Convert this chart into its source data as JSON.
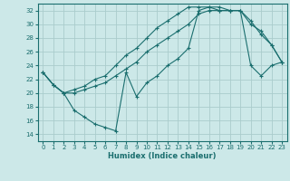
{
  "xlabel": "Humidex (Indice chaleur)",
  "bg_color": "#cce8e8",
  "line_color": "#1a6e6e",
  "grid_color": "#aacccc",
  "xlim": [
    -0.5,
    23.5
  ],
  "ylim": [
    13.0,
    33.0
  ],
  "yticks": [
    14,
    16,
    18,
    20,
    22,
    24,
    26,
    28,
    30,
    32
  ],
  "xticks": [
    0,
    1,
    2,
    3,
    4,
    5,
    6,
    7,
    8,
    9,
    10,
    11,
    12,
    13,
    14,
    15,
    16,
    17,
    18,
    19,
    20,
    21,
    22,
    23
  ],
  "line1_x": [
    0,
    1,
    2,
    3,
    4,
    5,
    6,
    7,
    8,
    9,
    10,
    11,
    12,
    13,
    14,
    15,
    16,
    17,
    18,
    19,
    20,
    21,
    22,
    23
  ],
  "line1_y": [
    23.0,
    21.2,
    20.0,
    20.5,
    21.0,
    22.0,
    22.5,
    24.0,
    25.5,
    26.5,
    28.0,
    29.5,
    30.5,
    31.5,
    32.5,
    32.5,
    32.5,
    32.0,
    32.0,
    32.0,
    30.5,
    28.5,
    27.0,
    24.5
  ],
  "line2_x": [
    0,
    1,
    2,
    3,
    4,
    5,
    6,
    7,
    8,
    9,
    10,
    11,
    12,
    13,
    14,
    15,
    16,
    17,
    18,
    19,
    20,
    21,
    22,
    23
  ],
  "line2_y": [
    23.0,
    21.2,
    20.0,
    20.0,
    20.5,
    21.0,
    21.5,
    22.5,
    23.5,
    24.5,
    26.0,
    27.0,
    28.0,
    29.0,
    30.0,
    31.5,
    32.0,
    32.0,
    32.0,
    32.0,
    30.0,
    29.0,
    27.0,
    24.5
  ],
  "line3_x": [
    0,
    1,
    2,
    3,
    4,
    5,
    6,
    7,
    8,
    9,
    10,
    11,
    12,
    13,
    14,
    15,
    16,
    17,
    18,
    19,
    20,
    21,
    22,
    23
  ],
  "line3_y": [
    23.0,
    21.2,
    20.0,
    17.5,
    16.5,
    15.5,
    15.0,
    14.5,
    23.0,
    19.5,
    21.5,
    22.5,
    24.0,
    25.0,
    26.5,
    32.0,
    32.5,
    32.5,
    32.0,
    32.0,
    24.0,
    22.5,
    24.0,
    24.5
  ]
}
